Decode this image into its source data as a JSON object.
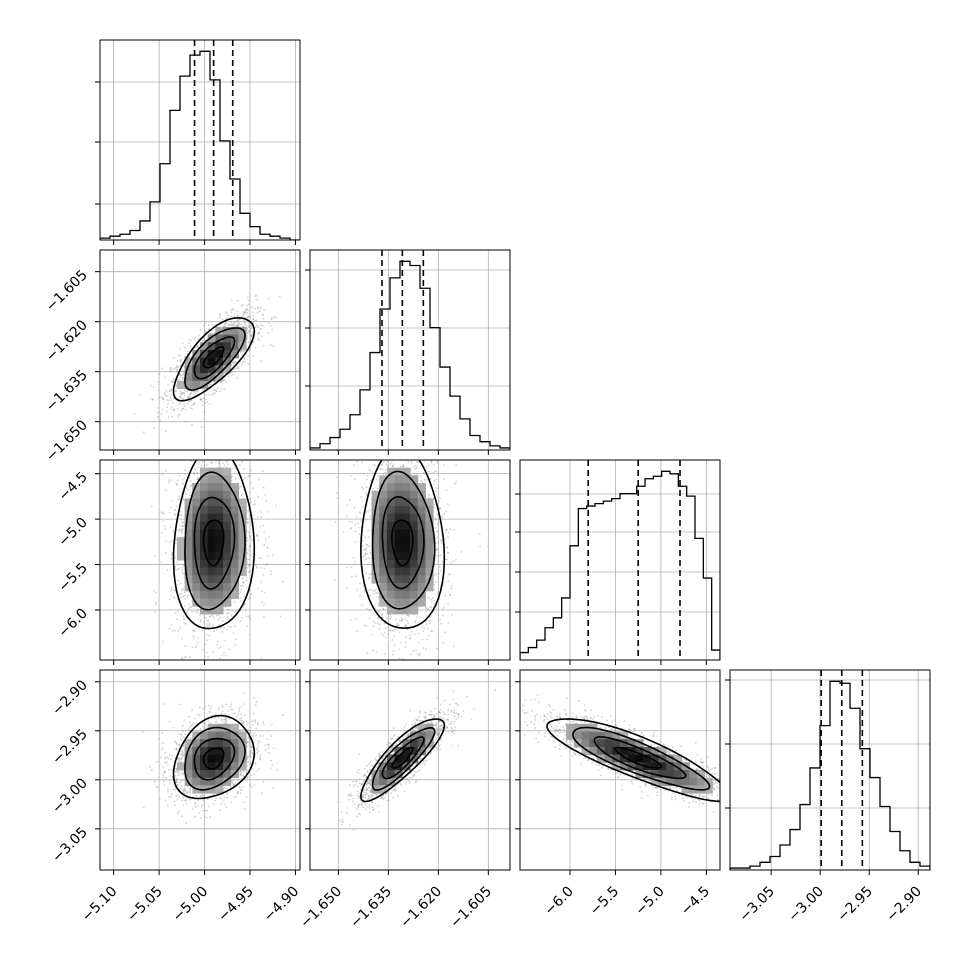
{
  "chart_data": {
    "type": "corner",
    "grid": true,
    "parameters": [
      {
        "range": [
          -5.115,
          -4.895
        ],
        "ticks": [
          -5.1,
          -5.05,
          -5.0,
          -4.95,
          -4.9
        ],
        "tick_labels": [
          "−5.10",
          "−5.05",
          "−5.00",
          "−4.95",
          "−4.90"
        ],
        "median": -4.99,
        "q16": -5.011,
        "q84": -4.969,
        "sd": 0.022
      },
      {
        "range": [
          -1.6585,
          -1.5985
        ],
        "ticks": [
          -1.65,
          -1.635,
          -1.62,
          -1.605
        ],
        "tick_labels": [
          "−1.650",
          "−1.635",
          "−1.620",
          "−1.605"
        ],
        "median": -1.6308,
        "q16": -1.6369,
        "q84": -1.6245,
        "sd": 0.0062
      },
      {
        "range": [
          -6.55,
          -4.35
        ],
        "ticks": [
          -6.0,
          -5.5,
          -5.0,
          -4.5
        ],
        "tick_labels": [
          "−6.0",
          "−5.5",
          "−5.0",
          "−4.5"
        ],
        "median": -5.25,
        "q16": -5.8,
        "q84": -4.79,
        "sd": 0.5
      },
      {
        "range": [
          -3.092,
          -2.888
        ],
        "ticks": [
          -3.05,
          -3.0,
          -2.95,
          -2.9
        ],
        "tick_labels": [
          "−3.05",
          "−3.00",
          "−2.95",
          "−2.90"
        ],
        "median": -2.978,
        "q16": -2.999,
        "q84": -2.957,
        "sd": 0.021
      }
    ],
    "histograms": [
      {
        "param": 0,
        "y_ticks": [
          0.18,
          0.49,
          0.79
        ],
        "values": [
          1,
          2,
          3,
          5,
          10,
          20,
          40,
          68,
          86,
          97,
          99,
          84,
          52,
          32,
          14,
          7,
          3,
          2,
          1,
          0
        ]
      },
      {
        "param": 1,
        "y_ticks": [
          0.32,
          0.61,
          0.9
        ],
        "values": [
          1,
          3,
          6,
          10,
          17,
          29,
          47,
          68,
          83,
          91,
          89,
          78,
          59,
          40,
          26,
          15,
          7,
          4,
          2,
          1
        ]
      },
      {
        "param": 2,
        "y_ticks": [
          0.24,
          0.44,
          0.64,
          0.83
        ],
        "values": [
          3,
          5,
          8,
          13,
          17,
          25,
          46,
          61,
          62,
          63,
          64,
          65,
          67,
          67,
          70,
          73,
          74,
          76,
          75,
          70,
          66,
          49,
          33,
          4
        ]
      },
      {
        "param": 3,
        "y_ticks": [
          0.31,
          0.63,
          0.95
        ],
        "values": [
          1,
          1,
          2,
          4,
          7,
          13,
          21,
          34,
          53,
          75,
          98,
          97,
          84,
          63,
          48,
          33,
          20,
          10,
          4,
          2
        ]
      }
    ],
    "pairs": [
      {
        "x": 0,
        "y": 1,
        "corr": 0.72
      },
      {
        "x": 0,
        "y": 2,
        "corr": 0.05
      },
      {
        "x": 1,
        "y": 2,
        "corr": -0.05
      },
      {
        "x": 0,
        "y": 3,
        "corr": 0.25
      },
      {
        "x": 1,
        "y": 3,
        "corr": 0.85
      },
      {
        "x": 2,
        "y": 3,
        "corr": -0.85
      }
    ],
    "contour_levels": [
      0.5,
      1.0,
      1.5,
      2.0
    ]
  }
}
